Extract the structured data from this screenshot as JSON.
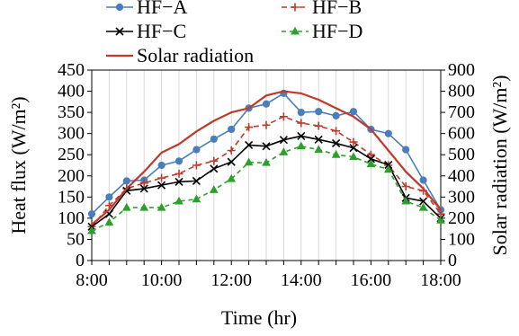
{
  "chart_data": {
    "type": "line",
    "xlabel": "Time (hr)",
    "ylabel_left": "Heat flux (W/m²)",
    "ylabel_right": "Solar radiation (W/m²)",
    "x_ticks": [
      "8:00",
      "10:00",
      "12:00",
      "14:00",
      "16:00",
      "18:00"
    ],
    "y_left_ticks": [
      "0",
      "50",
      "100",
      "150",
      "200",
      "250",
      "300",
      "350",
      "400",
      "450"
    ],
    "y_right_ticks": [
      "0",
      "100",
      "200",
      "300",
      "400",
      "500",
      "600",
      "700",
      "800",
      "900"
    ],
    "ylim_left": [
      0,
      450
    ],
    "ylim_right": [
      0,
      900
    ],
    "x_hours": [
      8,
      8.5,
      9,
      9.5,
      10,
      10.5,
      11,
      11.5,
      12,
      12.5,
      13,
      13.5,
      14,
      14.5,
      15,
      15.5,
      16,
      16.5,
      17,
      17.5,
      18
    ],
    "grid": "vertical",
    "legend_position": "top",
    "series": [
      {
        "name": "HF−A",
        "axis": "left",
        "color": "#4a7ebb",
        "marker": "circle",
        "values": [
          110,
          150,
          188,
          190,
          225,
          235,
          262,
          287,
          310,
          360,
          370,
          395,
          350,
          352,
          342,
          352,
          310,
          300,
          262,
          190,
          120
        ]
      },
      {
        "name": "HF−B",
        "axis": "left",
        "color": "#c0392b",
        "marker": "plus",
        "dash": "6,4",
        "values": [
          80,
          130,
          170,
          183,
          195,
          205,
          225,
          235,
          260,
          315,
          320,
          340,
          325,
          318,
          306,
          280,
          250,
          225,
          175,
          165,
          110
        ]
      },
      {
        "name": "HF−C",
        "axis": "left",
        "color": "#000000",
        "marker": "x",
        "values": [
          80,
          110,
          165,
          170,
          178,
          186,
          188,
          217,
          233,
          273,
          270,
          285,
          294,
          286,
          277,
          266,
          240,
          226,
          148,
          140,
          100
        ]
      },
      {
        "name": "HF−D",
        "axis": "left",
        "color": "#2ca02c",
        "marker": "triangle",
        "dash": "5,4",
        "values": [
          70,
          90,
          125,
          125,
          125,
          140,
          145,
          167,
          193,
          232,
          231,
          256,
          270,
          262,
          250,
          245,
          228,
          215,
          140,
          125,
          95
        ]
      },
      {
        "name": "Solar radiation",
        "axis": "right",
        "color": "#c0392b",
        "marker": "none",
        "values": [
          170,
          240,
          340,
          420,
          510,
          550,
          610,
          660,
          700,
          720,
          780,
          800,
          790,
          760,
          720,
          680,
          620,
          520,
          420,
          340,
          240
        ]
      }
    ]
  }
}
